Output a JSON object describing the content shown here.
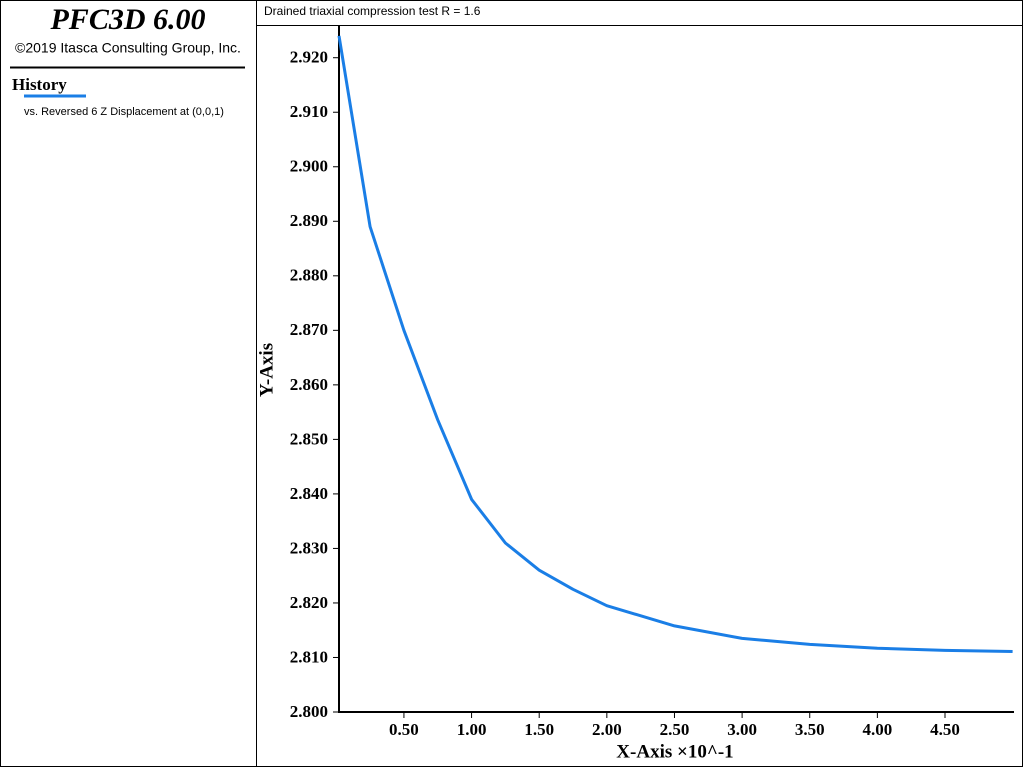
{
  "app": {
    "name": "PFC3D 6.00",
    "copyright": "©2019 Itasca Consulting Group, Inc."
  },
  "chart_data": {
    "type": "line",
    "title": "Drained triaxial compression test R = 1.6",
    "x_label": "X-Axis ×10^-1",
    "y_label": "Y-Axis",
    "x": [
      0.02,
      0.25,
      0.5,
      0.75,
      1.0,
      1.25,
      1.5,
      1.75,
      2.0,
      2.5,
      3.0,
      3.5,
      4.0,
      4.5,
      5.0
    ],
    "series": [
      {
        "name": "History",
        "description": "vs. Reversed 6 Z Displacement at (0,0,1)",
        "color": "#1a7ee6",
        "values": [
          2.924,
          2.889,
          2.87,
          2.8536,
          2.839,
          2.831,
          2.826,
          2.8225,
          2.8195,
          2.8158,
          2.8135,
          2.8124,
          2.8117,
          2.8113,
          2.8111
        ]
      }
    ],
    "xlim": [
      0.02,
      5.01
    ],
    "ylim": [
      2.8,
      2.926
    ],
    "xticks": [
      {
        "value": 0.5,
        "label": "0.50"
      },
      {
        "value": 1.0,
        "label": "1.00"
      },
      {
        "value": 1.5,
        "label": "1.50"
      },
      {
        "value": 2.0,
        "label": "2.00"
      },
      {
        "value": 2.5,
        "label": "2.50"
      },
      {
        "value": 3.0,
        "label": "3.00"
      },
      {
        "value": 3.5,
        "label": "3.50"
      },
      {
        "value": 4.0,
        "label": "4.00"
      },
      {
        "value": 4.5,
        "label": "4.50"
      }
    ],
    "yticks": [
      {
        "value": 2.8,
        "label": "2.800"
      },
      {
        "value": 2.81,
        "label": "2.810"
      },
      {
        "value": 2.82,
        "label": "2.820"
      },
      {
        "value": 2.83,
        "label": "2.830"
      },
      {
        "value": 2.84,
        "label": "2.840"
      },
      {
        "value": 2.85,
        "label": "2.850"
      },
      {
        "value": 2.86,
        "label": "2.860"
      },
      {
        "value": 2.87,
        "label": "2.870"
      },
      {
        "value": 2.88,
        "label": "2.880"
      },
      {
        "value": 2.89,
        "label": "2.890"
      },
      {
        "value": 2.9,
        "label": "2.900"
      },
      {
        "value": 2.91,
        "label": "2.910"
      },
      {
        "value": 2.92,
        "label": "2.920"
      }
    ],
    "grid": false
  }
}
